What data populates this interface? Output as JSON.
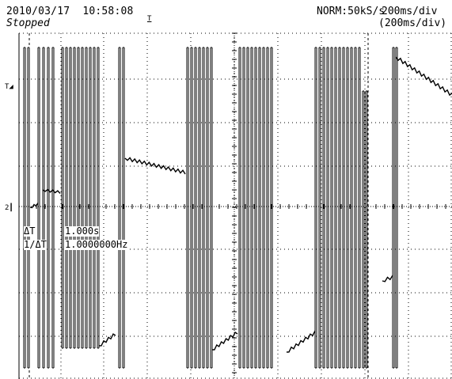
{
  "header": {
    "datetime": "2010/03/17  10:58:08",
    "status": "Stopped",
    "acquisition": "NORM:50kS/s",
    "timebase": "200ms/div",
    "zoom_timebase": "(200ms/div)"
  },
  "markers": {
    "trigger_position": "T",
    "trigger_level": "T",
    "channel_ground": "2"
  },
  "measurements": {
    "delta_t_label": "ΔT",
    "delta_t_value": "1.000s",
    "inv_delta_t_label": "1/ΔT",
    "inv_delta_t_value": "1.0000000Hz"
  },
  "display": {
    "background_color": "#ffffff",
    "trace_color": "#000000",
    "grid_color": "#000000"
  }
}
